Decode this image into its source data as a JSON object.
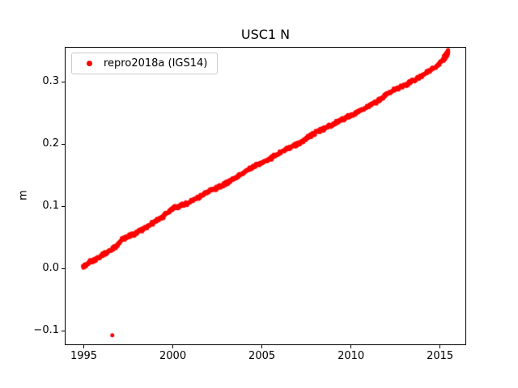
{
  "chart_data": {
    "type": "scatter",
    "title": "USC1 N",
    "xlabel": "",
    "ylabel": "m",
    "xlim": [
      1993.93,
      2016.47
    ],
    "ylim": [
      -0.123,
      0.356
    ],
    "xtick_values": [
      1995,
      2000,
      2005,
      2010,
      2015
    ],
    "xtick_labels": [
      "1995",
      "2000",
      "2005",
      "2010",
      "2015"
    ],
    "ytick_values": [
      -0.1,
      0.0,
      0.1,
      0.2,
      0.3
    ],
    "ytick_labels": [
      "−0.1",
      "0.0",
      "0.1",
      "0.2",
      "0.3"
    ],
    "grid": false,
    "legend": {
      "position": "upper-left",
      "entries": [
        {
          "label": "repro2018a (IGS14)",
          "color": "#ff0000",
          "marker": "dot"
        }
      ]
    },
    "series": [
      {
        "name": "repro2018a (IGS14)",
        "color": "#ff0000",
        "marker_size_px": 2.5,
        "band_halfwidth": 0.0035,
        "x_step": 0.025,
        "trend_points": [
          [
            1994.95,
            0.002
          ],
          [
            1995.3,
            0.01
          ],
          [
            1995.7,
            0.016
          ],
          [
            1996.0,
            0.022
          ],
          [
            1996.4,
            0.028
          ],
          [
            1996.8,
            0.035
          ],
          [
            1997.1,
            0.046
          ],
          [
            1997.4,
            0.05
          ],
          [
            1997.8,
            0.055
          ],
          [
            1998.2,
            0.061
          ],
          [
            1998.6,
            0.068
          ],
          [
            1999.0,
            0.076
          ],
          [
            1999.4,
            0.083
          ],
          [
            1999.8,
            0.092
          ],
          [
            2000.1,
            0.098
          ],
          [
            2000.4,
            0.101
          ],
          [
            2000.8,
            0.105
          ],
          [
            2001.2,
            0.111
          ],
          [
            2001.6,
            0.117
          ],
          [
            2002.0,
            0.124
          ],
          [
            2002.4,
            0.129
          ],
          [
            2002.8,
            0.134
          ],
          [
            2003.2,
            0.14
          ],
          [
            2003.6,
            0.148
          ],
          [
            2004.0,
            0.155
          ],
          [
            2004.4,
            0.162
          ],
          [
            2004.8,
            0.168
          ],
          [
            2005.2,
            0.173
          ],
          [
            2005.6,
            0.179
          ],
          [
            2006.0,
            0.186
          ],
          [
            2006.4,
            0.192
          ],
          [
            2006.8,
            0.197
          ],
          [
            2007.2,
            0.203
          ],
          [
            2007.6,
            0.211
          ],
          [
            2008.0,
            0.218
          ],
          [
            2008.4,
            0.224
          ],
          [
            2008.8,
            0.229
          ],
          [
            2009.2,
            0.235
          ],
          [
            2009.6,
            0.241
          ],
          [
            2010.0,
            0.246
          ],
          [
            2010.4,
            0.252
          ],
          [
            2010.8,
            0.258
          ],
          [
            2011.2,
            0.264
          ],
          [
            2011.6,
            0.271
          ],
          [
            2012.0,
            0.28
          ],
          [
            2012.3,
            0.285
          ],
          [
            2012.6,
            0.289
          ],
          [
            2013.0,
            0.294
          ],
          [
            2013.4,
            0.3
          ],
          [
            2013.8,
            0.307
          ],
          [
            2014.2,
            0.314
          ],
          [
            2014.6,
            0.321
          ],
          [
            2015.0,
            0.33
          ],
          [
            2015.2,
            0.336
          ],
          [
            2015.45,
            0.346
          ]
        ],
        "end_cluster": {
          "x_start": 2015.18,
          "x_end": 2015.46,
          "y_start": 0.336,
          "y_end": 0.347,
          "y_spread": 0.005,
          "count": 70
        },
        "outliers": [
          [
            1996.6,
            -0.107
          ]
        ]
      }
    ]
  }
}
